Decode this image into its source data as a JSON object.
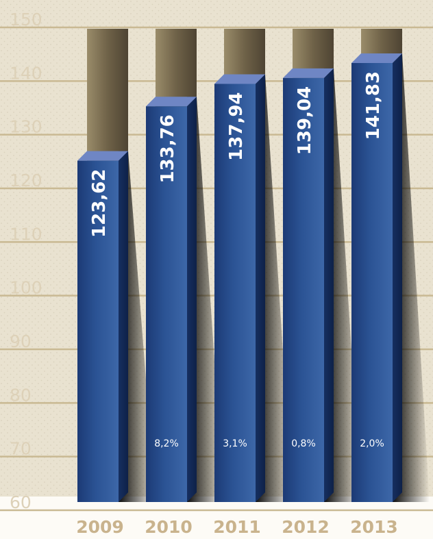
{
  "chart_data": {
    "type": "bar",
    "categories": [
      "2009",
      "2010",
      "2011",
      "2012",
      "2013"
    ],
    "values": [
      123.62,
      133.76,
      137.94,
      139.04,
      141.83
    ],
    "value_labels": [
      "123,62",
      "133,76",
      "137,94",
      "139,04",
      "141,83"
    ],
    "growth_labels": [
      "",
      "8,2%",
      "3,1%",
      "0,8%",
      "2,0%"
    ],
    "title": "",
    "xlabel": "",
    "ylabel": "",
    "ylim": [
      60,
      150
    ],
    "yticks": [
      "60",
      "70",
      "80",
      "90",
      "100",
      "110",
      "120",
      "130",
      "140",
      "150"
    ],
    "grid": true,
    "colors": {
      "bar": "#2d5596",
      "bar_dark": "#1c3a75",
      "bar_top": "#6f86c4",
      "background": "#e9e2d0",
      "gridline": "#c9b993",
      "tick_text": "#ddd1b8",
      "year_text": "#c9b38d",
      "slot": "#7d7053"
    }
  }
}
